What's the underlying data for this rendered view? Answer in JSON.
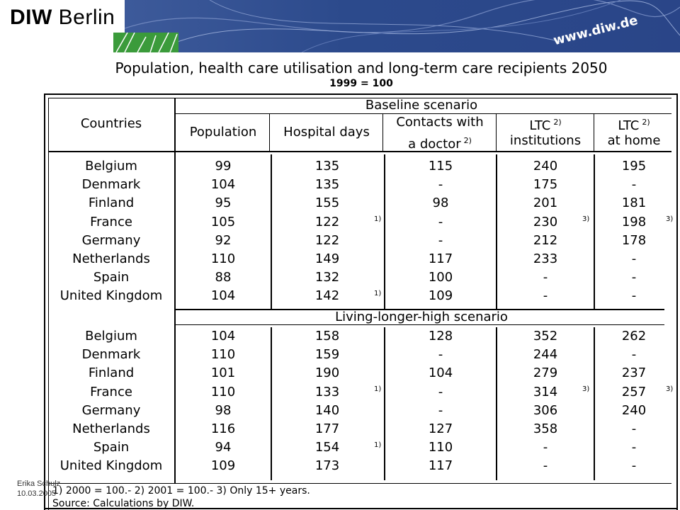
{
  "header": {
    "logo_bold": "DIW",
    "logo_rest": " Berlin",
    "url": "www.diw.de"
  },
  "title": "Population, health care utilisation and long-term care recipients 2050",
  "subtitle": "1999 = 100",
  "table": {
    "col_countries": "Countries",
    "scenario1": "Baseline scenario",
    "scenario2": "Living-longer-high scenario",
    "col_population": "Population",
    "col_hospital": "Hospital days",
    "col_contacts_1": "Contacts with",
    "col_contacts_2": "a doctor",
    "col_contacts_note": "2)",
    "col_ltc_inst_1": "LTC",
    "col_ltc_inst_note": "2)",
    "col_ltc_inst_2": "institutions",
    "col_ltc_home_1": "LTC",
    "col_ltc_home_note": "2)",
    "col_ltc_home_2": "at home",
    "baseline_rows": [
      [
        "Belgium",
        "99",
        "135",
        "115",
        "240",
        "195"
      ],
      [
        "Denmark",
        "104",
        "135",
        "-",
        "175",
        "-"
      ],
      [
        "Finland",
        "95",
        "155",
        "98",
        "201",
        "181"
      ],
      [
        "France",
        "105",
        "122",
        "-",
        "230",
        "198"
      ],
      [
        "Germany",
        "92",
        "122",
        "-",
        "212",
        "178"
      ],
      [
        "Netherlands",
        "110",
        "149",
        "117",
        "233",
        "-"
      ],
      [
        "Spain",
        "88",
        "132",
        "100",
        "-",
        "-"
      ],
      [
        "United Kingdom",
        "104",
        "142",
        "109",
        "-",
        "-"
      ]
    ],
    "longer_rows": [
      [
        "Belgium",
        "104",
        "158",
        "128",
        "352",
        "262"
      ],
      [
        "Denmark",
        "110",
        "159",
        "-",
        "244",
        "-"
      ],
      [
        "Finland",
        "101",
        "190",
        "104",
        "279",
        "237"
      ],
      [
        "France",
        "110",
        "133",
        "-",
        "314",
        "257"
      ],
      [
        "Germany",
        "98",
        "140",
        "-",
        "306",
        "240"
      ],
      [
        "Netherlands",
        "116",
        "177",
        "127",
        "358",
        "-"
      ],
      [
        "Spain",
        "94",
        "154",
        "110",
        "-",
        "-"
      ],
      [
        "United Kingdom",
        "109",
        "173",
        "117",
        "-",
        "-"
      ]
    ],
    "note_1": "1)",
    "note_3": "3)"
  },
  "footnote": "1) 2000 = 100.- 2) 2001 = 100.- 3) Only 15+ years.",
  "source": "Source: Calculations by DIW.",
  "author_name": "Erika Schulz",
  "author_date": "10.03.2005"
}
